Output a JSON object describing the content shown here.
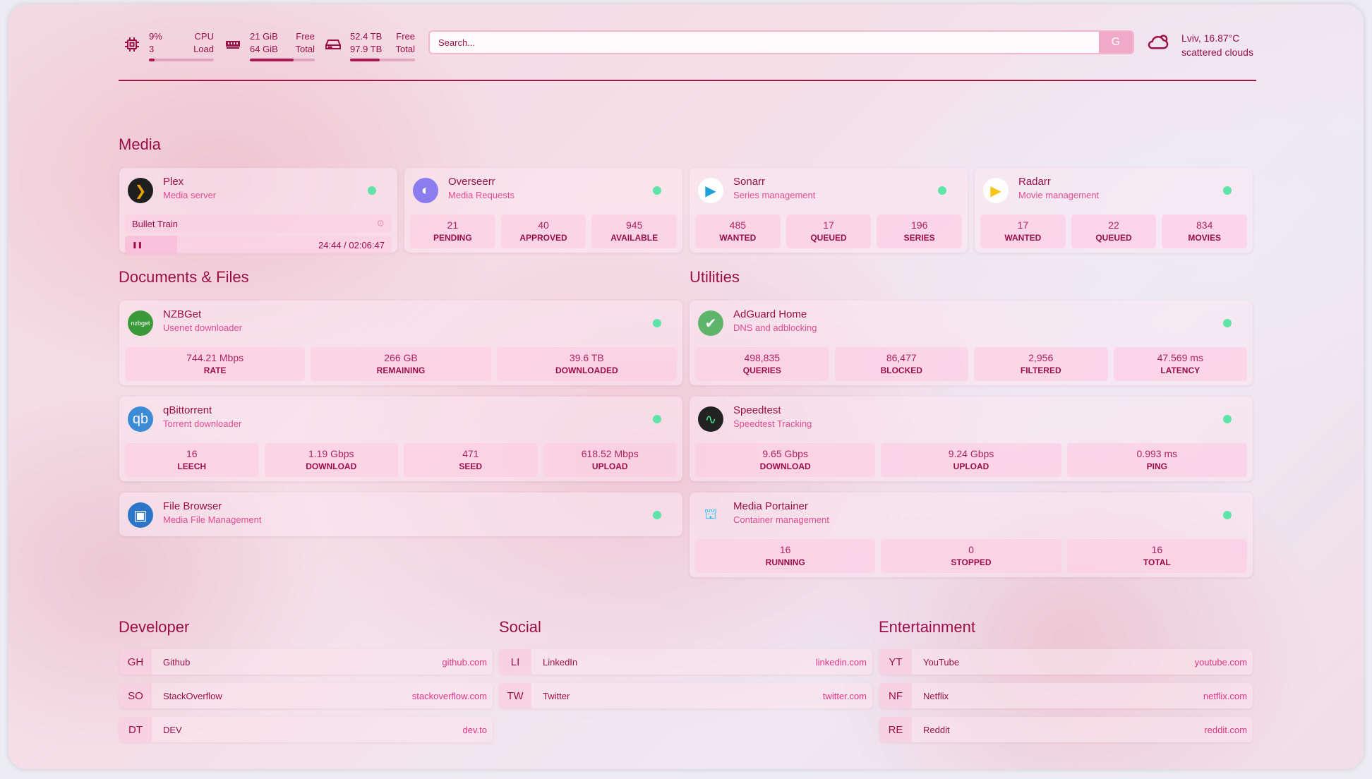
{
  "resources": [
    {
      "icon": "cpu-icon",
      "line1": "9%",
      "label1": "CPU",
      "line2": "3",
      "label2": "Load",
      "percent": 9
    },
    {
      "icon": "memory-icon",
      "line1": "21 GiB",
      "label1": "Free",
      "line2": "64 GiB",
      "label2": "Total",
      "percent": 67
    },
    {
      "icon": "disk-icon",
      "line1": "52.4 TB",
      "label1": "Free",
      "line2": "97.9 TB",
      "label2": "Total",
      "percent": 46
    }
  ],
  "search": {
    "placeholder": "Search...",
    "engine_label": "G"
  },
  "weather": {
    "location": "Lviv, 16.87°C",
    "condition": "scattered clouds",
    "icon": "cloud-sun-icon"
  },
  "groups": {
    "media": "Media",
    "docs": "Documents & Files",
    "utilities": "Utilities",
    "developer": "Developer",
    "social": "Social",
    "entertainment": "Entertainment"
  },
  "colors": {
    "accent": "#9c0f45",
    "status_online": "#5fe3a9",
    "subtitle": "#e44a92"
  },
  "plex": {
    "name": "Plex",
    "desc": "Media server",
    "now_playing": "Bullet Train",
    "progress": "24:44 / 02:06:47",
    "progress_fraction": 0.195
  },
  "services": {
    "media": [
      {
        "name": "Overseerr",
        "desc": "Media Requests",
        "icon": "overseerr-icon",
        "stats": [
          [
            "21",
            "PENDING"
          ],
          [
            "40",
            "APPROVED"
          ],
          [
            "945",
            "AVAILABLE"
          ]
        ]
      },
      {
        "name": "Sonarr",
        "desc": "Series management",
        "icon": "sonarr-icon",
        "stats": [
          [
            "485",
            "WANTED"
          ],
          [
            "17",
            "QUEUED"
          ],
          [
            "196",
            "SERIES"
          ]
        ]
      },
      {
        "name": "Radarr",
        "desc": "Movie management",
        "icon": "radarr-icon",
        "stats": [
          [
            "17",
            "WANTED"
          ],
          [
            "22",
            "QUEUED"
          ],
          [
            "834",
            "MOVIES"
          ]
        ]
      }
    ],
    "docs": [
      {
        "name": "NZBGet",
        "desc": "Usenet downloader",
        "icon": "nzbget-icon",
        "stats": [
          [
            "744.21 Mbps",
            "RATE"
          ],
          [
            "266 GB",
            "REMAINING"
          ],
          [
            "39.6 TB",
            "DOWNLOADED"
          ]
        ]
      },
      {
        "name": "qBittorrent",
        "desc": "Torrent downloader",
        "icon": "qbittorrent-icon",
        "stats": [
          [
            "16",
            "LEECH"
          ],
          [
            "1.19 Gbps",
            "DOWNLOAD"
          ],
          [
            "471",
            "SEED"
          ],
          [
            "618.52 Mbps",
            "UPLOAD"
          ]
        ]
      },
      {
        "name": "File Browser",
        "desc": "Media File Management",
        "icon": "file-browser-icon",
        "stats": []
      }
    ],
    "utilities": [
      {
        "name": "AdGuard Home",
        "desc": "DNS and adblocking",
        "icon": "adguard-icon",
        "stats": [
          [
            "498,835",
            "QUERIES"
          ],
          [
            "86,477",
            "BLOCKED"
          ],
          [
            "2,956",
            "FILTERED"
          ],
          [
            "47.569 ms",
            "LATENCY"
          ]
        ]
      },
      {
        "name": "Speedtest",
        "desc": "Speedtest Tracking",
        "icon": "speedtest-icon",
        "stats": [
          [
            "9.65 Gbps",
            "DOWNLOAD"
          ],
          [
            "9.24 Gbps",
            "UPLOAD"
          ],
          [
            "0.993 ms",
            "PING"
          ]
        ]
      },
      {
        "name": "Media Portainer",
        "desc": "Container management",
        "icon": "portainer-icon",
        "stats": [
          [
            "16",
            "RUNNING"
          ],
          [
            "0",
            "STOPPED"
          ],
          [
            "16",
            "TOTAL"
          ]
        ]
      }
    ]
  },
  "bookmarks": {
    "developer": [
      [
        "GH",
        "Github",
        "github.com"
      ],
      [
        "SO",
        "StackOverflow",
        "stackoverflow.com"
      ],
      [
        "DT",
        "DEV",
        "dev.to"
      ]
    ],
    "social": [
      [
        "LI",
        "LinkedIn",
        "linkedin.com"
      ],
      [
        "TW",
        "Twitter",
        "twitter.com"
      ]
    ],
    "entertainment": [
      [
        "YT",
        "YouTube",
        "youtube.com"
      ],
      [
        "NF",
        "Netflix",
        "netflix.com"
      ],
      [
        "RE",
        "Reddit",
        "reddit.com"
      ]
    ]
  }
}
